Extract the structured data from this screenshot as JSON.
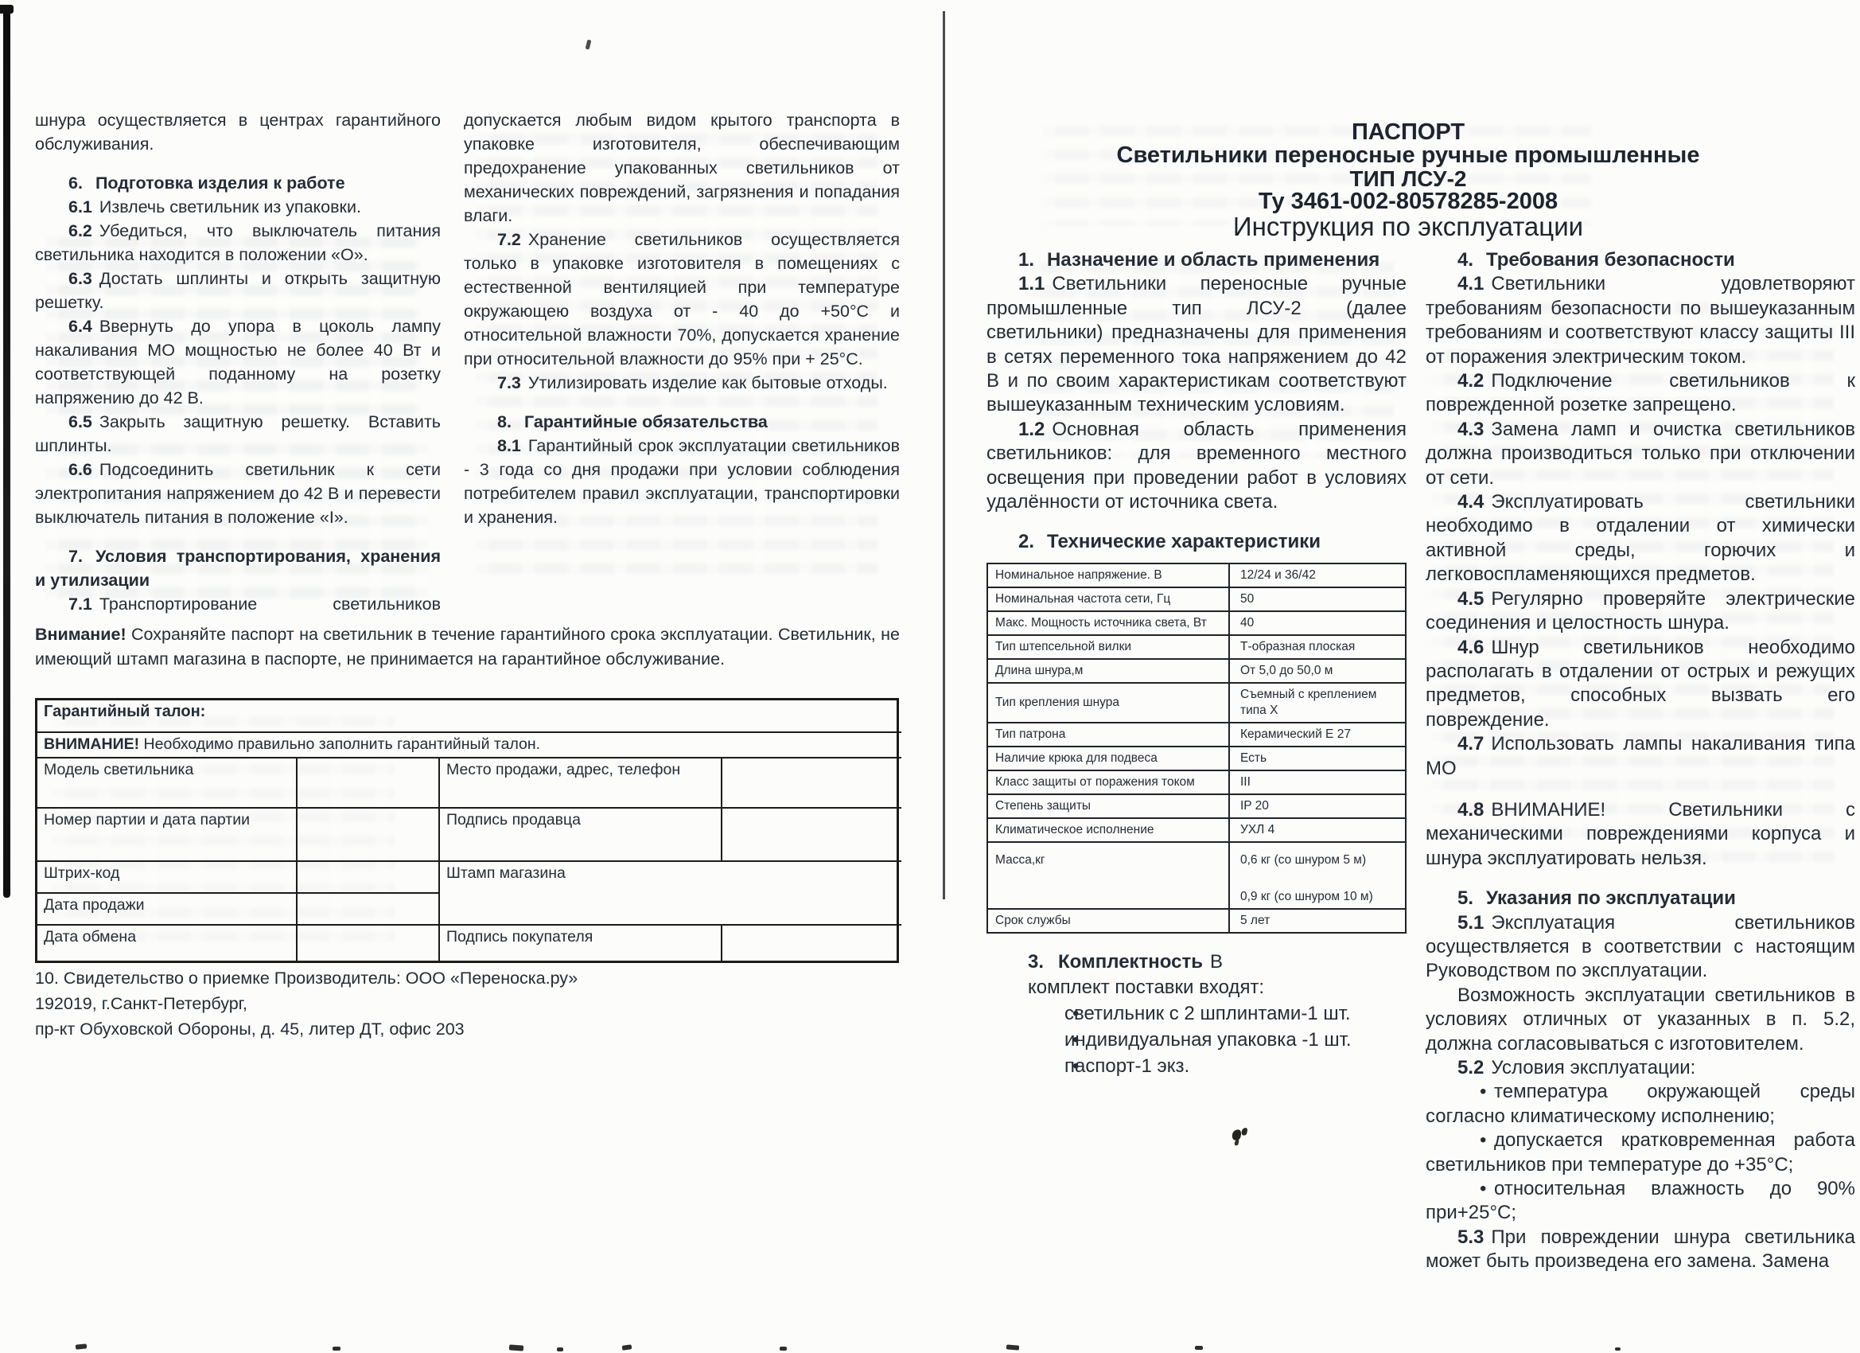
{
  "left_page": {
    "col1": {
      "cont": "шнура осуществляется в центрах гарантийного обслуживания.",
      "s6": {
        "num": "6.",
        "title": "Подготовка изделия к работе"
      },
      "p61": {
        "num": "6.1",
        "text": "Извлечь светильник из упаковки."
      },
      "p62": {
        "num": "6.2",
        "text": "Убедиться, что выключатель питания светильника находится в положении «О»."
      },
      "p63": {
        "num": "6.3",
        "text": "Достать шплинты и открыть защитную решетку."
      },
      "p64": {
        "num": "6.4",
        "text": "Ввернуть до упора в цоколь лампу накаливания МО мощностью не более 40 Вт и соответствующей поданному на розетку напряжению до 42 В."
      },
      "p65": {
        "num": "6.5",
        "text": "Закрыть защитную решетку. Вставить шплинты."
      },
      "p66": {
        "num": "6.6",
        "text": "Подсоединить светильник к сети электропитания напряжением до 42 В и перевести выключатель питания в положение «I»."
      },
      "s7": {
        "num": "7.",
        "title": "Условия транспортирования, хранения и утилизации"
      },
      "p71": {
        "num": "7.1",
        "text": "Транспортирование светильников"
      }
    },
    "col2": {
      "p71cont": "допускается любым видом крытого транспорта в упаковке изготовителя, обеспечивающим предохранение упакованных светильников от механических повреждений, загрязнения и попадания влаги.",
      "p72": {
        "num": "7.2",
        "text": "Хранение светильников осуществляется только в упаковке изготовителя в помещениях с естественной вентиляцией при температуре окружающею воздуха от - 40 до +50°С и относительной влажности 70%, допускается хранение при относительной влажности до 95% при + 25°С."
      },
      "p73": {
        "num": "7.3",
        "text": "Утилизировать изделие как бытовые отходы."
      },
      "s8": {
        "num": "8.",
        "title": "Гарантийные обязательства"
      },
      "p81": {
        "num": "8.1",
        "text": "Гарантийный срок эксплуатации светильников - 3 года со дня продажи при условии соблюдения потребителем правил эксплуатации, транспортировки и хранения."
      }
    },
    "attention": {
      "bold": "Внимание!",
      "text": " Сохраняйте паспорт на светильник в течение гарантийного срока эксплуатации. Светильник, не имеющий штамп магазина в паспорте, не принимается на гарантийное обслуживание."
    },
    "warranty_table": {
      "title": "Гарантийный талон:",
      "notice_bold": "ВНИМАНИЕ!",
      "notice_rest": " Необходимо правильно заполнить гарантийный талон.",
      "rows_left": [
        "Модель светильника",
        "Номер партии и дата партии",
        "Штрих-код",
        "Дата продажи",
        "Дата обмена"
      ],
      "rows_right": [
        "Место продажи, адрес, телефон",
        "Подпись продавца",
        "Штамп магазина",
        "Подпись покупателя"
      ]
    },
    "acceptance": {
      "line1": "10. Свидетельство о приемке Производитель: ООО «Переноска.ру»",
      "line2": "192019, г.Санкт-Петербург,",
      "line3": "пр-кт Обуховской Обороны, д. 45, литер ДТ, офис 203"
    }
  },
  "right_page": {
    "title": {
      "l1": "ПАСПОРТ",
      "l2": "Светильники переносные ручные промышленные",
      "l3": "ТИП ЛСУ-2",
      "l4": "Ту 3461-002-80578285-2008",
      "l5": "Инструкция по эксплуатации"
    },
    "col1": {
      "s1": {
        "num": "1.",
        "title": "Назначение и область применения"
      },
      "p11": {
        "num": "1.1",
        "text": "Светильники переносные ручные промышленные тип ЛСУ-2 (далее светильники) предназначены для применения в сетях переменного тока напряжением до 42 В и по своим характеристикам соответствуют вышеуказанным техническим условиям."
      },
      "p12": {
        "num": "1.2",
        "text": "Основная область применения светильников: для временного местного освещения при проведении работ в условиях удалённости от источника света."
      },
      "s2": {
        "num": "2.",
        "title": "Технические характеристики"
      },
      "s3": {
        "num": "3.",
        "title": "Комплектность",
        "tail": "В"
      },
      "kit_intro": "комплект поставки входят:",
      "bullet_char": "•",
      "kit": [
        "светильник  с 2 шплинтами-1 шт.",
        "индивидуальная упаковка -1 шт.",
        "паспорт-1 экз."
      ]
    },
    "tech_table": {
      "rows": [
        {
          "label": "Номинальное напряжение. В",
          "value": "12/24 и 36/42"
        },
        {
          "label": "Номинальная частота сети, Гц",
          "value": "50"
        },
        {
          "label": "Макс. Мощность источника света, Вт",
          "value": "40"
        },
        {
          "label": "Тип штепсельной вилки",
          "value": "Т-образная плоская"
        },
        {
          "label": "Длина шнура,м",
          "value": "От 5,0 до 50,0 м"
        },
        {
          "label": "Тип крепления шнура",
          "value": "Съемный с креплением",
          "value2": "типа Х"
        },
        {
          "label": "Тип патрона",
          "value": "Керамический Е 27"
        },
        {
          "label": "Наличие крюка для подвеса",
          "value": "Есть"
        },
        {
          "label": "Класс защиты от поражения током",
          "value": "III"
        },
        {
          "label": "Степень защиты",
          "value": "IP 20"
        },
        {
          "label": "Климатическое исполнение",
          "value": "УХЛ 4"
        },
        {
          "label": "Масса,кг",
          "value": "0,6 кг (со шнуром 5 м)",
          "value2": "0,9 кг (со шнуром 10 м)"
        },
        {
          "label": "Срок службы",
          "value": "5 лет"
        }
      ]
    },
    "col2": {
      "s4": {
        "num": "4.",
        "title": "Требования безопасности"
      },
      "p41": {
        "num": "4.1",
        "text": "Светильники удовлетворяют требованиям безопасности по вышеуказанным требованиям и соответствуют классу защиты III от поражения электрическим током."
      },
      "p42": {
        "num": "4.2",
        "text": "Подключение светильников к поврежденной розетке запрещено."
      },
      "p43": {
        "num": "4.3",
        "text": "Замена ламп и очистка светильников должна производиться только при отключении от сети."
      },
      "p44": {
        "num": "4.4",
        "text": "Эксплуатировать светильники необходимо в отдалении от химически активной среды, горючих и легковоспламеняющихся предметов."
      },
      "p45": {
        "num": "4.5",
        "text": "Регулярно проверяйте электрические соединения и целостность шнура."
      },
      "p46": {
        "num": "4.6",
        "text": "Шнур светильников необходимо располагать в отдалении от острых и режущих предметов, способных вызвать его повреждение."
      },
      "p47": {
        "num": "4.7",
        "text": "Использовать лампы накаливания типа МО"
      },
      "p48": {
        "num": "4.8",
        "text": "ВНИМАНИЕ! Светильники с механическими повреждениями корпуса и шнура эксплуатировать нельзя."
      },
      "s5": {
        "num": "5.",
        "title": "Указания по эксплуатации"
      },
      "p51": {
        "num": "5.1",
        "text": "Эксплуатация светильников осуществляется в соответствии с настоящим Руководством по эксплуатации."
      },
      "p51b": "Возможность эксплуатации светильников в условиях отличных от указанных в п. 5.2, должна согласовываться с изготовителем.",
      "p52": {
        "num": "5.2",
        "text": "Условия эксплуатации:"
      },
      "bullet_char": "•",
      "bullets": [
        "температура окружающей среды согласно климатическому исполнению;",
        "допускается кратковременная работа светильников при температуре до +35°С;",
        "относительная влажность до 90% при+25°С;"
      ],
      "p53": {
        "num": "5.3",
        "text": "При повреждении шнура светильника может быть произведена его замена. Замена"
      }
    }
  }
}
